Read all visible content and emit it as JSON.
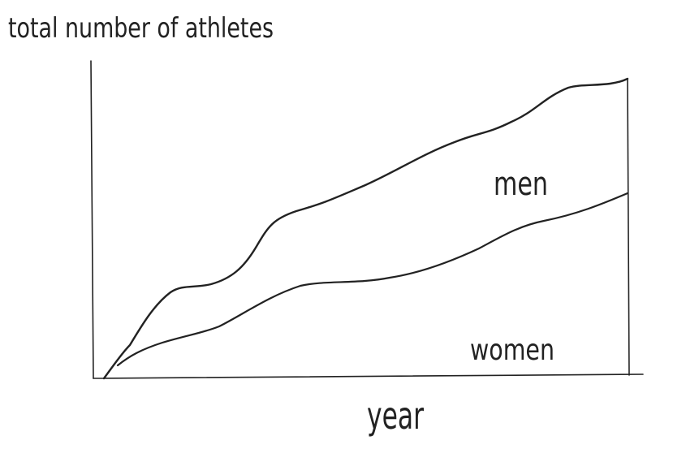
{
  "title": "total number of athletes",
  "x_axis_label": "year",
  "areas": [
    {
      "label": "men"
    },
    {
      "label": "women"
    }
  ]
}
